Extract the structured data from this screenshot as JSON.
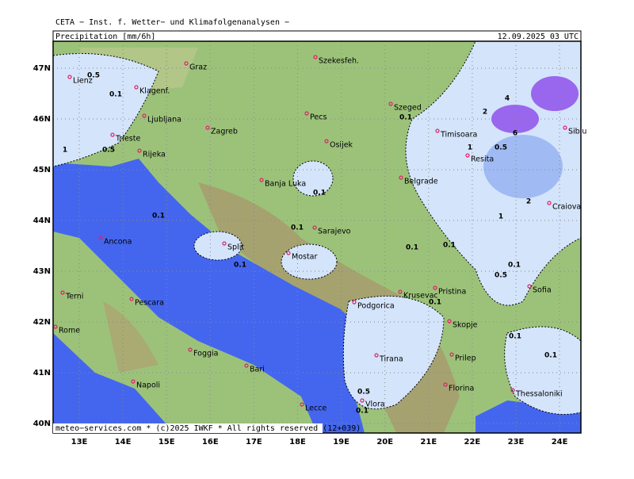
{
  "header": "CETA − Inst. f. Wetter− und Klimafolgenanalysen −",
  "title": "Precipitation [mm/6h]",
  "date": "12.09.2025 03 UTC",
  "footer": "meteo−services.com * (c)2025 IWKF * All rights reserved (12+039)",
  "lat_labels": [
    "47N",
    "46N",
    "45N",
    "44N",
    "43N",
    "42N",
    "41N",
    "40N"
  ],
  "lon_labels": [
    "13E",
    "14E",
    "15E",
    "16E",
    "17E",
    "18E",
    "19E",
    "20E",
    "21E",
    "22E",
    "23E",
    "24E"
  ],
  "cities": [
    "Lienz",
    "Graz",
    "Szekesfeh.",
    "Klagenf.",
    "Ljubljana",
    "Zagreb",
    "Pecs",
    "Szeged",
    "Timisoara",
    "Sibiu",
    "Trieste",
    "Rijeka",
    "Osijek",
    "Resita",
    "Banja Luka",
    "Belgrade",
    "Craiova",
    "Sarajevo",
    "Ancona",
    "Split",
    "Mostar",
    "Terni",
    "Pescara",
    "Podgorica",
    "Krusevac",
    "Pristina",
    "Sofia",
    "Skopje",
    "Rome",
    "Foggia",
    "Tirana",
    "Prilep",
    "Bari",
    "Napoli",
    "Florina",
    "Thessaloniki",
    "Vlora",
    "Lecce"
  ],
  "contour_labels": [
    0.5,
    0.1,
    1,
    0.5,
    0.1,
    0.1,
    0.1,
    0.1,
    0.1,
    0.1,
    0.1,
    0.1,
    0.1,
    0.5,
    0.1,
    0.1,
    0.5,
    1,
    4,
    2,
    6,
    2,
    1,
    0.5,
    0.1
  ]
}
